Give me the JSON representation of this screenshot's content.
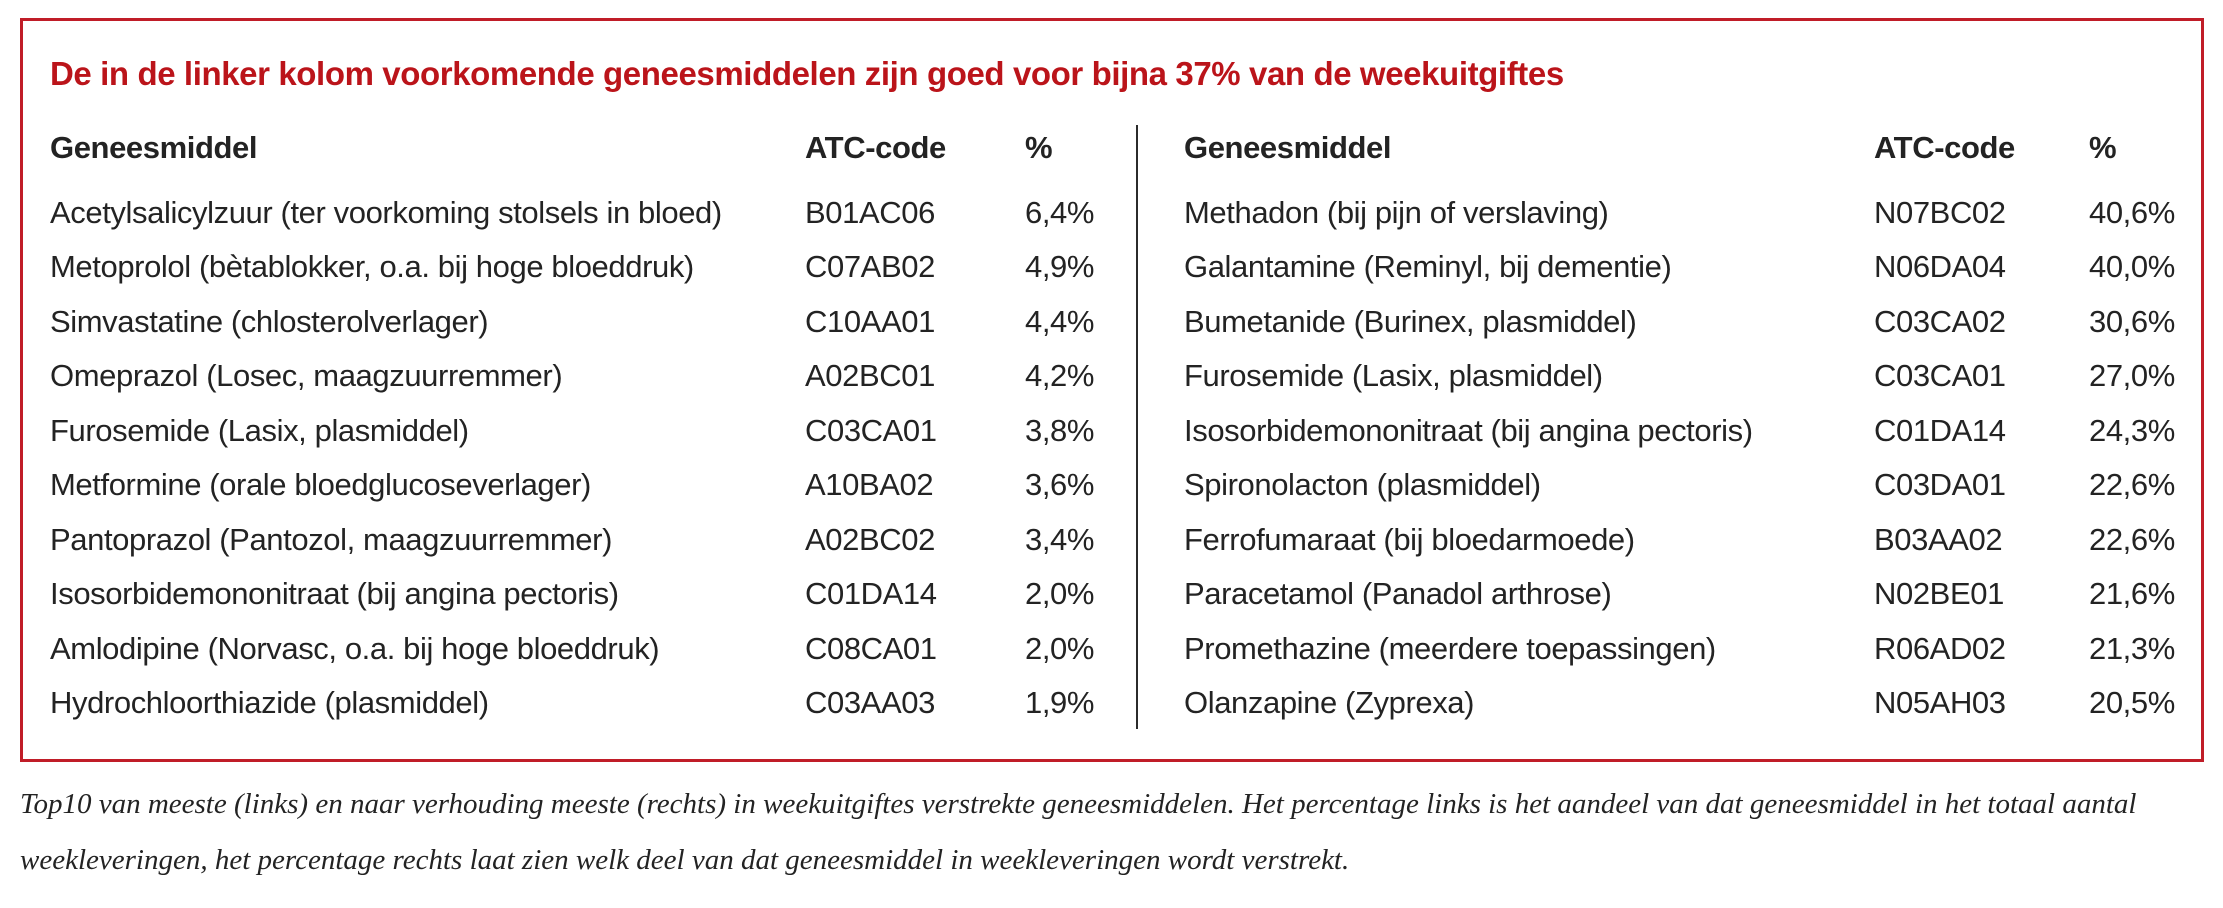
{
  "colors": {
    "accent_red_border": "#c01d28",
    "accent_red_title": "#bb141a",
    "text": "#232323",
    "divider": "#2b2b2b"
  },
  "figure": {
    "title": "De in de linker kolom voorkomende geneesmiddelen zijn goed voor bijna 37% van de weekuitgiftes",
    "caption": "Top10 van meeste (links) en naar verhouding meeste (rechts) in weekuitgiftes verstrekte geneesmiddelen. Het percentage links is het aandeel van dat geneesmiddel in het totaal aantal weekleveringen, het percentage rechts laat zien welk deel van dat geneesmiddel in weekleveringen wordt verstrekt."
  },
  "left_table": {
    "headers": {
      "name": "Geneesmiddel",
      "atc": "ATC-code",
      "pct": "%"
    },
    "rows": [
      {
        "name": "Acetylsalicylzuur (ter voorkoming stolsels in bloed)",
        "atc": "B01AC06",
        "pct": "6,4%"
      },
      {
        "name": "Metoprolol (bètablokker, o.a. bij hoge bloeddruk)",
        "atc": "C07AB02",
        "pct": "4,9%"
      },
      {
        "name": "Simvastatine (chlosterolverlager)",
        "atc": "C10AA01",
        "pct": "4,4%"
      },
      {
        "name": "Omeprazol (Losec, maagzuurremmer)",
        "atc": "A02BC01",
        "pct": "4,2%"
      },
      {
        "name": "Furosemide (Lasix, plasmiddel)",
        "atc": "C03CA01",
        "pct": "3,8%"
      },
      {
        "name": "Metformine (orale bloedglucoseverlager)",
        "atc": "A10BA02",
        "pct": "3,6%"
      },
      {
        "name": "Pantoprazol (Pantozol, maagzuurremmer)",
        "atc": "A02BC02",
        "pct": "3,4%"
      },
      {
        "name": "Isosorbidemononitraat (bij angina pectoris)",
        "atc": "C01DA14",
        "pct": "2,0%"
      },
      {
        "name": "Amlodipine (Norvasc, o.a. bij hoge bloeddruk)",
        "atc": "C08CA01",
        "pct": "2,0%"
      },
      {
        "name": "Hydrochloorthiazide (plasmiddel)",
        "atc": "C03AA03",
        "pct": "1,9%"
      }
    ]
  },
  "right_table": {
    "headers": {
      "name": "Geneesmiddel",
      "atc": "ATC-code",
      "pct": "%"
    },
    "rows": [
      {
        "name": "Methadon (bij pijn of verslaving)",
        "atc": "N07BC02",
        "pct": "40,6%"
      },
      {
        "name": "Galantamine (Reminyl, bij dementie)",
        "atc": "N06DA04",
        "pct": "40,0%"
      },
      {
        "name": "Bumetanide (Burinex, plasmiddel)",
        "atc": "C03CA02",
        "pct": "30,6%"
      },
      {
        "name": "Furosemide (Lasix, plasmiddel)",
        "atc": "C03CA01",
        "pct": "27,0%"
      },
      {
        "name": "Isosorbidemononitraat (bij angina pectoris)",
        "atc": "C01DA14",
        "pct": "24,3%"
      },
      {
        "name": "Spironolacton (plasmiddel)",
        "atc": "C03DA01",
        "pct": "22,6%"
      },
      {
        "name": "Ferrofumaraat (bij bloedarmoede)",
        "atc": "B03AA02",
        "pct": "22,6%"
      },
      {
        "name": "Paracetamol (Panadol arthrose)",
        "atc": "N02BE01",
        "pct": "21,6%"
      },
      {
        "name": "Promethazine (meerdere toepassingen)",
        "atc": "R06AD02",
        "pct": "21,3%"
      },
      {
        "name": "Olanzapine (Zyprexa)",
        "atc": "N05AH03",
        "pct": "20,5%"
      }
    ]
  }
}
